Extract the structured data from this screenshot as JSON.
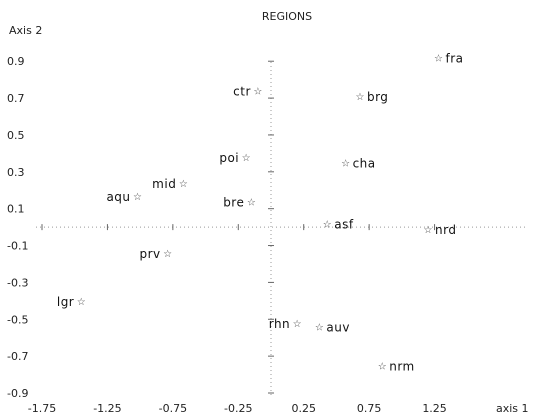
{
  "chart_data": {
    "type": "scatter",
    "title": "REGIONS",
    "ylabel": "Axis 2",
    "xlabel": "axis 1",
    "xlim": [
      -1.75,
      1.75
    ],
    "ylim": [
      -0.9,
      0.95
    ],
    "xticks": [
      -1.75,
      -1.25,
      -0.75,
      -0.25,
      0.25,
      0.75,
      1.25
    ],
    "xtick_labels": [
      "-1.75",
      "-1.25",
      "-0.75",
      "-0.25",
      "0.25",
      "0.75",
      "1.25"
    ],
    "yticks": [
      0.9,
      0.7,
      0.5,
      0.3,
      0.1,
      -0.1,
      -0.3,
      -0.5,
      -0.7,
      -0.9
    ],
    "ytick_labels": [
      "0.9",
      "0.7",
      "0.5",
      "0.3",
      "0.1",
      "-0.1",
      "-0.3",
      "-0.5",
      "-0.7",
      "-0.9"
    ],
    "marker": "☆",
    "points": [
      {
        "label": "fra",
        "x": 1.28,
        "y": 0.92,
        "side": "right"
      },
      {
        "label": "ctr",
        "x": -0.1,
        "y": 0.74,
        "side": "left"
      },
      {
        "label": "brg",
        "x": 0.68,
        "y": 0.71,
        "side": "right"
      },
      {
        "label": "poi",
        "x": -0.19,
        "y": 0.38,
        "side": "left"
      },
      {
        "label": "cha",
        "x": 0.57,
        "y": 0.35,
        "side": "right"
      },
      {
        "label": "mid",
        "x": -0.67,
        "y": 0.24,
        "side": "left"
      },
      {
        "label": "aqu",
        "x": -1.02,
        "y": 0.17,
        "side": "left"
      },
      {
        "label": "bre",
        "x": -0.15,
        "y": 0.14,
        "side": "left"
      },
      {
        "label": "asf",
        "x": 0.43,
        "y": 0.02,
        "side": "right"
      },
      {
        "label": "nrd",
        "x": 1.2,
        "y": -0.01,
        "side": "right"
      },
      {
        "label": "prv",
        "x": -0.79,
        "y": -0.14,
        "side": "left"
      },
      {
        "label": "lgr",
        "x": -1.45,
        "y": -0.4,
        "side": "left"
      },
      {
        "label": "rhn",
        "x": 0.2,
        "y": -0.52,
        "side": "left"
      },
      {
        "label": "auv",
        "x": 0.37,
        "y": -0.54,
        "side": "right"
      },
      {
        "label": "nrm",
        "x": 0.85,
        "y": -0.75,
        "side": "right"
      }
    ]
  }
}
